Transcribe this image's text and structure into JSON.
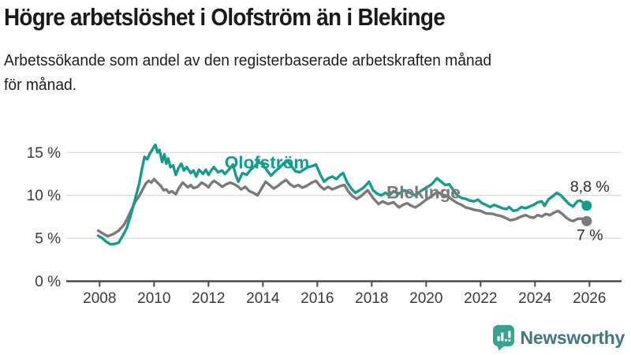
{
  "header": {
    "title": "Högre arbetslöshet i Olofström än i Blekinge",
    "subtitle_line1": "Arbetssökande som andel av den registerbaserade arbetskraften månad",
    "subtitle_line2": "för månad."
  },
  "colors": {
    "olofstrom": "#169c8e",
    "blekinge": "#7a7a7a",
    "gridline": "#dcdcdc",
    "axis": "#4a4a4a",
    "tick_text": "#3a3a3a",
    "value_text": "#2b2b2b",
    "logo_icon": "#38a293",
    "logo_text": "#40787e"
  },
  "chart_data": {
    "type": "line",
    "unit": "%",
    "grid": "horizontal",
    "x_axis": {
      "ticks": [
        {
          "v": 2008,
          "label": "2008"
        },
        {
          "v": 2010,
          "label": "2010"
        },
        {
          "v": 2012,
          "label": "2012"
        },
        {
          "v": 2014,
          "label": "2014"
        },
        {
          "v": 2016,
          "label": "2016"
        },
        {
          "v": 2018,
          "label": "2018"
        },
        {
          "v": 2020,
          "label": "2020"
        },
        {
          "v": 2022,
          "label": "2022"
        },
        {
          "v": 2024,
          "label": "2024"
        },
        {
          "v": 2026,
          "label": "2026"
        }
      ],
      "range": [
        2007.9,
        2027.2
      ]
    },
    "y_axis": {
      "ticks": [
        {
          "v": 0,
          "label": "0 %"
        },
        {
          "v": 5,
          "label": "5 %"
        },
        {
          "v": 10,
          "label": "10 %"
        },
        {
          "v": 15,
          "label": "15 %"
        }
      ],
      "range": [
        0,
        16.5
      ]
    },
    "series": [
      {
        "name": "Olofström",
        "color_key": "olofstrom",
        "end_value_label": "8,8 %",
        "end_label_offset": {
          "dx": 4,
          "dy": -18
        },
        "points": [
          [
            2007.95,
            5.3
          ],
          [
            2008.1,
            5.0
          ],
          [
            2008.25,
            4.6
          ],
          [
            2008.4,
            4.3
          ],
          [
            2008.55,
            4.35
          ],
          [
            2008.7,
            4.5
          ],
          [
            2008.85,
            5.3
          ],
          [
            2009.0,
            6.2
          ],
          [
            2009.15,
            7.8
          ],
          [
            2009.3,
            9.5
          ],
          [
            2009.45,
            11.3
          ],
          [
            2009.55,
            13.0
          ],
          [
            2009.65,
            14.5
          ],
          [
            2009.75,
            14.2
          ],
          [
            2009.85,
            14.9
          ],
          [
            2009.95,
            15.4
          ],
          [
            2010.05,
            15.9
          ],
          [
            2010.13,
            15.0
          ],
          [
            2010.2,
            15.3
          ],
          [
            2010.3,
            13.9
          ],
          [
            2010.38,
            14.8
          ],
          [
            2010.45,
            13.7
          ],
          [
            2010.52,
            14.3
          ],
          [
            2010.6,
            13.3
          ],
          [
            2010.7,
            13.5
          ],
          [
            2010.8,
            12.4
          ],
          [
            2010.9,
            13.2
          ],
          [
            2011.0,
            13.7
          ],
          [
            2011.1,
            12.9
          ],
          [
            2011.2,
            13.3
          ],
          [
            2011.35,
            12.6
          ],
          [
            2011.45,
            12.9
          ],
          [
            2011.55,
            12.2
          ],
          [
            2011.65,
            13.0
          ],
          [
            2011.8,
            12.5
          ],
          [
            2011.9,
            13.0
          ],
          [
            2012.0,
            12.4
          ],
          [
            2012.1,
            12.9
          ],
          [
            2012.2,
            13.3
          ],
          [
            2012.35,
            12.7
          ],
          [
            2012.5,
            12.9
          ],
          [
            2012.6,
            12.5
          ],
          [
            2012.75,
            13.0
          ],
          [
            2012.9,
            13.6
          ],
          [
            2013.0,
            12.4
          ],
          [
            2013.1,
            11.6
          ],
          [
            2013.25,
            12.6
          ],
          [
            2013.4,
            12.4
          ],
          [
            2013.55,
            13.0
          ],
          [
            2013.7,
            13.4
          ],
          [
            2013.85,
            13.9
          ],
          [
            2014.0,
            13.6
          ],
          [
            2014.15,
            12.9
          ],
          [
            2014.3,
            12.3
          ],
          [
            2014.45,
            12.8
          ],
          [
            2014.6,
            13.2
          ],
          [
            2014.75,
            13.7
          ],
          [
            2014.9,
            14.0
          ],
          [
            2015.05,
            13.4
          ],
          [
            2015.2,
            12.8
          ],
          [
            2015.35,
            12.7
          ],
          [
            2015.5,
            13.0
          ],
          [
            2015.65,
            13.3
          ],
          [
            2015.8,
            13.4
          ],
          [
            2015.95,
            13.6
          ],
          [
            2016.1,
            12.5
          ],
          [
            2016.25,
            11.6
          ],
          [
            2016.4,
            12.0
          ],
          [
            2016.55,
            12.2
          ],
          [
            2016.7,
            11.9
          ],
          [
            2016.85,
            12.4
          ],
          [
            2016.95,
            12.6
          ],
          [
            2017.1,
            11.5
          ],
          [
            2017.25,
            10.8
          ],
          [
            2017.4,
            10.3
          ],
          [
            2017.55,
            10.6
          ],
          [
            2017.7,
            10.9
          ],
          [
            2017.9,
            11.6
          ],
          [
            2018.05,
            10.6
          ],
          [
            2018.2,
            10.2
          ],
          [
            2018.35,
            10.0
          ],
          [
            2018.5,
            10.3
          ],
          [
            2018.65,
            10.0
          ],
          [
            2018.8,
            10.5
          ],
          [
            2019.0,
            10.2
          ],
          [
            2019.2,
            10.6
          ],
          [
            2019.4,
            10.3
          ],
          [
            2019.6,
            10.0
          ],
          [
            2019.8,
            10.5
          ],
          [
            2020.0,
            10.9
          ],
          [
            2020.2,
            11.3
          ],
          [
            2020.4,
            12.0
          ],
          [
            2020.55,
            11.6
          ],
          [
            2020.7,
            11.2
          ],
          [
            2020.85,
            11.3
          ],
          [
            2021.0,
            10.6
          ],
          [
            2021.15,
            10.0
          ],
          [
            2021.3,
            9.7
          ],
          [
            2021.45,
            9.6
          ],
          [
            2021.6,
            9.4
          ],
          [
            2021.75,
            9.3
          ],
          [
            2021.9,
            9.5
          ],
          [
            2022.05,
            9.1
          ],
          [
            2022.2,
            8.9
          ],
          [
            2022.35,
            8.65
          ],
          [
            2022.5,
            8.9
          ],
          [
            2022.65,
            8.7
          ],
          [
            2022.8,
            8.5
          ],
          [
            2022.95,
            8.4
          ],
          [
            2023.05,
            8.65
          ],
          [
            2023.2,
            8.2
          ],
          [
            2023.35,
            8.3
          ],
          [
            2023.5,
            8.65
          ],
          [
            2023.65,
            8.5
          ],
          [
            2023.8,
            8.7
          ],
          [
            2023.95,
            8.9
          ],
          [
            2024.1,
            9.2
          ],
          [
            2024.25,
            9.3
          ],
          [
            2024.35,
            8.8
          ],
          [
            2024.5,
            9.55
          ],
          [
            2024.65,
            9.9
          ],
          [
            2024.8,
            10.3
          ],
          [
            2024.95,
            10.0
          ],
          [
            2025.1,
            9.5
          ],
          [
            2025.25,
            9.0
          ],
          [
            2025.4,
            8.7
          ],
          [
            2025.55,
            9.3
          ],
          [
            2025.65,
            9.4
          ],
          [
            2025.8,
            9.1
          ],
          [
            2025.9,
            8.8
          ]
        ]
      },
      {
        "name": "Blekinge",
        "color_key": "blekinge",
        "end_value_label": "7 %",
        "end_label_offset": {
          "dx": 4,
          "dy": 24
        },
        "points": [
          [
            2007.95,
            5.9
          ],
          [
            2008.1,
            5.6
          ],
          [
            2008.3,
            5.25
          ],
          [
            2008.5,
            5.5
          ],
          [
            2008.7,
            5.9
          ],
          [
            2008.9,
            6.6
          ],
          [
            2009.0,
            7.2
          ],
          [
            2009.15,
            8.2
          ],
          [
            2009.3,
            9.2
          ],
          [
            2009.45,
            9.9
          ],
          [
            2009.6,
            10.8
          ],
          [
            2009.7,
            11.4
          ],
          [
            2009.8,
            11.7
          ],
          [
            2009.9,
            11.5
          ],
          [
            2010.0,
            11.9
          ],
          [
            2010.15,
            11.4
          ],
          [
            2010.25,
            11.1
          ],
          [
            2010.35,
            10.6
          ],
          [
            2010.45,
            10.7
          ],
          [
            2010.55,
            10.3
          ],
          [
            2010.65,
            10.5
          ],
          [
            2010.8,
            10.15
          ],
          [
            2010.9,
            10.8
          ],
          [
            2011.05,
            11.5
          ],
          [
            2011.15,
            11.2
          ],
          [
            2011.25,
            10.95
          ],
          [
            2011.35,
            11.2
          ],
          [
            2011.45,
            10.85
          ],
          [
            2011.6,
            11.0
          ],
          [
            2011.75,
            11.5
          ],
          [
            2011.9,
            11.2
          ],
          [
            2012.0,
            10.95
          ],
          [
            2012.1,
            11.4
          ],
          [
            2012.2,
            11.7
          ],
          [
            2012.35,
            11.4
          ],
          [
            2012.5,
            11.0
          ],
          [
            2012.65,
            11.3
          ],
          [
            2012.8,
            11.5
          ],
          [
            2012.95,
            11.3
          ],
          [
            2013.1,
            11.0
          ],
          [
            2013.2,
            10.7
          ],
          [
            2013.35,
            11.0
          ],
          [
            2013.5,
            10.5
          ],
          [
            2013.65,
            10.3
          ],
          [
            2013.8,
            10.0
          ],
          [
            2013.95,
            10.8
          ],
          [
            2014.1,
            11.6
          ],
          [
            2014.25,
            11.2
          ],
          [
            2014.4,
            10.8
          ],
          [
            2014.55,
            11.1
          ],
          [
            2014.7,
            11.5
          ],
          [
            2014.85,
            11.8
          ],
          [
            2015.0,
            11.3
          ],
          [
            2015.15,
            11.0
          ],
          [
            2015.3,
            11.2
          ],
          [
            2015.45,
            10.9
          ],
          [
            2015.6,
            11.1
          ],
          [
            2015.8,
            11.5
          ],
          [
            2015.95,
            11.7
          ],
          [
            2016.1,
            11.1
          ],
          [
            2016.25,
            10.7
          ],
          [
            2016.4,
            11.0
          ],
          [
            2016.55,
            10.7
          ],
          [
            2016.7,
            10.9
          ],
          [
            2016.85,
            11.1
          ],
          [
            2017.0,
            11.2
          ],
          [
            2017.15,
            10.4
          ],
          [
            2017.3,
            9.9
          ],
          [
            2017.45,
            9.6
          ],
          [
            2017.6,
            9.9
          ],
          [
            2017.85,
            10.6
          ],
          [
            2018.05,
            9.7
          ],
          [
            2018.25,
            9.0
          ],
          [
            2018.4,
            9.3
          ],
          [
            2018.6,
            9.0
          ],
          [
            2018.8,
            9.2
          ],
          [
            2019.0,
            8.6
          ],
          [
            2019.15,
            8.9
          ],
          [
            2019.3,
            9.1
          ],
          [
            2019.45,
            8.8
          ],
          [
            2019.6,
            8.6
          ],
          [
            2019.8,
            9.0
          ],
          [
            2020.0,
            9.5
          ],
          [
            2020.2,
            9.9
          ],
          [
            2020.4,
            10.4
          ],
          [
            2020.6,
            10.1
          ],
          [
            2020.8,
            9.9
          ],
          [
            2021.0,
            9.4
          ],
          [
            2021.15,
            9.1
          ],
          [
            2021.3,
            8.9
          ],
          [
            2021.45,
            8.6
          ],
          [
            2021.65,
            8.45
          ],
          [
            2021.8,
            8.3
          ],
          [
            2022.0,
            8.2
          ],
          [
            2022.2,
            7.9
          ],
          [
            2022.45,
            7.85
          ],
          [
            2022.6,
            7.7
          ],
          [
            2022.75,
            7.6
          ],
          [
            2022.9,
            7.4
          ],
          [
            2023.1,
            7.1
          ],
          [
            2023.3,
            7.25
          ],
          [
            2023.5,
            7.55
          ],
          [
            2023.65,
            7.7
          ],
          [
            2023.8,
            7.5
          ],
          [
            2023.95,
            7.4
          ],
          [
            2024.1,
            7.7
          ],
          [
            2024.25,
            7.55
          ],
          [
            2024.4,
            7.85
          ],
          [
            2024.55,
            7.7
          ],
          [
            2024.7,
            8.0
          ],
          [
            2024.85,
            8.2
          ],
          [
            2025.0,
            7.85
          ],
          [
            2025.15,
            7.4
          ],
          [
            2025.3,
            7.1
          ],
          [
            2025.4,
            7.0
          ],
          [
            2025.55,
            7.25
          ],
          [
            2025.7,
            7.3
          ],
          [
            2025.8,
            7.15
          ],
          [
            2025.9,
            7.0
          ]
        ]
      }
    ],
    "series_labels": [
      {
        "text": "Olofström",
        "x": 2014.15,
        "y": 13.9,
        "color_key": "olofstrom"
      },
      {
        "text": "Blekinge",
        "x": 2019.9,
        "y": 10.4,
        "color_key": "blekinge"
      }
    ]
  },
  "footer": {
    "brand_name": "Newsworthy"
  }
}
